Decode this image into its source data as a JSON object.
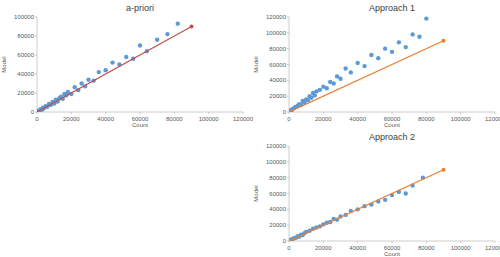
{
  "chart_data": [
    {
      "type": "scatter",
      "title": "a-priori",
      "x_label": "Count",
      "y_label": "Model",
      "xlim": [
        0,
        120000
      ],
      "ylim": [
        0,
        100000
      ],
      "xticks": [
        0,
        20000,
        40000,
        60000,
        80000,
        100000,
        120000
      ],
      "yticks": [
        0,
        20000,
        40000,
        60000,
        80000,
        100000
      ],
      "grid": false,
      "series": [
        {
          "type": "scatter",
          "color": "#5b9bd5",
          "marker": "circle",
          "x": [
            500,
            1000,
            1500,
            2000,
            2500,
            3000,
            3500,
            4000,
            5000,
            6000,
            7000,
            8000,
            9000,
            10000,
            11000,
            12000,
            13000,
            14000,
            15000,
            16000,
            17000,
            18000,
            20000,
            22000,
            24000,
            26000,
            28000,
            30000,
            33000,
            36000,
            40000,
            44000,
            48000,
            52000,
            56000,
            60000,
            64000,
            70000,
            76000,
            82000
          ],
          "values": [
            800,
            1500,
            1200,
            2600,
            3000,
            2500,
            4500,
            4000,
            6000,
            5500,
            8500,
            7500,
            10500,
            9000,
            13000,
            11000,
            14500,
            16000,
            14000,
            19000,
            17500,
            21000,
            19000,
            26000,
            23000,
            30000,
            27000,
            34000,
            33000,
            42000,
            44000,
            52000,
            50000,
            58000,
            56000,
            70000,
            64000,
            76000,
            82000,
            93000
          ]
        },
        {
          "type": "line",
          "color": "#c0504d",
          "marker": "circle",
          "x": [
            0,
            90000
          ],
          "values": [
            0,
            90000
          ]
        }
      ]
    },
    {
      "type": "scatter",
      "title": "Approach 1",
      "x_label": "Count",
      "y_label": "Model",
      "xlim": [
        0,
        120000
      ],
      "ylim": [
        0,
        120000
      ],
      "xticks": [
        0,
        20000,
        40000,
        60000,
        80000,
        100000,
        120000
      ],
      "yticks": [
        0,
        20000,
        40000,
        60000,
        80000,
        100000,
        120000
      ],
      "grid": false,
      "series": [
        {
          "type": "scatter",
          "color": "#5b9bd5",
          "marker": "circle",
          "x": [
            500,
            1000,
            1500,
            2000,
            3000,
            4000,
            5000,
            6000,
            7000,
            8000,
            9000,
            10000,
            11000,
            12000,
            13000,
            14000,
            15000,
            16000,
            18000,
            20000,
            22000,
            24000,
            26000,
            28000,
            30000,
            33000,
            36000,
            40000,
            44000,
            48000,
            52000,
            56000,
            60000,
            64000,
            68000,
            72000,
            76000,
            80000
          ],
          "values": [
            1000,
            2000,
            2500,
            3500,
            5000,
            6500,
            8000,
            10000,
            9000,
            14000,
            12000,
            16000,
            15000,
            20000,
            18000,
            24000,
            21000,
            26000,
            28000,
            32000,
            30000,
            38000,
            36000,
            45000,
            42000,
            55000,
            50000,
            62000,
            58000,
            72000,
            68000,
            80000,
            76000,
            88000,
            82000,
            98000,
            95000,
            118000
          ]
        },
        {
          "type": "line",
          "color": "#ed7d31",
          "marker": "circle",
          "x": [
            0,
            90000
          ],
          "values": [
            0,
            90000
          ]
        }
      ]
    },
    {
      "type": "scatter",
      "title": "Approach 2",
      "x_label": "Count",
      "y_label": "Model",
      "xlim": [
        0,
        120000
      ],
      "ylim": [
        0,
        120000
      ],
      "xticks": [
        0,
        20000,
        40000,
        60000,
        80000,
        100000,
        120000
      ],
      "yticks": [
        0,
        20000,
        40000,
        60000,
        80000,
        100000,
        120000
      ],
      "grid": false,
      "series": [
        {
          "type": "scatter",
          "color": "#5b9bd5",
          "marker": "circle",
          "x": [
            500,
            1000,
            1500,
            2000,
            3000,
            4000,
            5000,
            6000,
            7000,
            8000,
            9000,
            10000,
            12000,
            14000,
            16000,
            18000,
            20000,
            22000,
            24000,
            26000,
            28000,
            30000,
            33000,
            36000,
            40000,
            44000,
            48000,
            52000,
            56000,
            60000,
            64000,
            68000,
            72000,
            78000
          ],
          "values": [
            700,
            1400,
            1800,
            2500,
            3500,
            4200,
            6000,
            5500,
            8000,
            7500,
            10000,
            11500,
            13000,
            15500,
            17000,
            18500,
            21000,
            23000,
            24000,
            28000,
            27000,
            31000,
            33000,
            38000,
            40000,
            44000,
            46000,
            50000,
            52000,
            58000,
            62000,
            60000,
            70000,
            80000
          ]
        },
        {
          "type": "line",
          "color": "#ed7d31",
          "marker": "circle",
          "x": [
            0,
            90000
          ],
          "values": [
            0,
            90000
          ]
        }
      ]
    }
  ]
}
